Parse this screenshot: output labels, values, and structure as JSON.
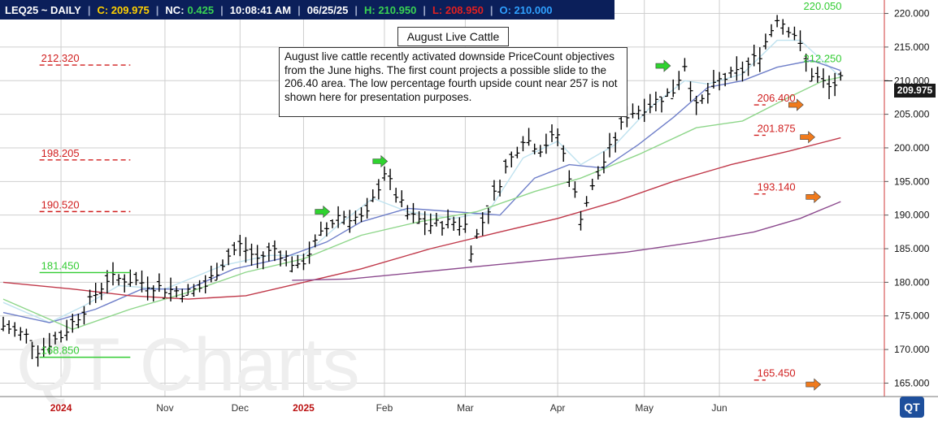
{
  "header": {
    "symbol": "LEQ25 ~ DAILY",
    "close": "C: 209.975",
    "net_change_label": "NC:",
    "net_change": "0.425",
    "time": "10:08:41 AM",
    "date": "06/25/25",
    "high": "H: 210.950",
    "low": "L: 208.950",
    "open": "O: 210.000",
    "colors": {
      "bg": "#0b1f5a",
      "symbol": "#ffffff",
      "close": "#ffd000",
      "nc_label": "#ffffff",
      "nc": "#39d353",
      "time": "#ffffff",
      "date": "#ffffff",
      "high": "#39d353",
      "low": "#e02020",
      "open": "#2fa0ff"
    }
  },
  "annotations": {
    "title": "August Live Cattle",
    "note": "August live cattle recently activated downside PriceCount objectives from the June highs.  The first count projects a possible slide to the 206.40 area.  The low percentage fourth upside count near 257 is not shown here for presentation purposes."
  },
  "last_price": "209.975",
  "watermark": "QT Charts",
  "logo": "QT",
  "chart_data": {
    "type": "ohlc",
    "ylim": [
      163,
      222
    ],
    "y_ticks": [
      165.0,
      170.0,
      175.0,
      180.0,
      185.0,
      190.0,
      195.0,
      200.0,
      205.0,
      210.0,
      215.0,
      220.0
    ],
    "y_tick_labels": [
      "165.000",
      "170.000",
      "175.000",
      "180.000",
      "185.000",
      "190.000",
      "195.000",
      "200.000",
      "205.000",
      "210.000",
      "215.000",
      "220.000"
    ],
    "x_labels": [
      "2024",
      "Nov",
      "Dec",
      "2025",
      "Feb",
      "Mar",
      "Apr",
      "May",
      "Jun"
    ],
    "x_label_colors": [
      "#b11",
      "#333",
      "#333",
      "#b11",
      "#333",
      "#333",
      "#333",
      "#333",
      "#333"
    ],
    "x_label_pos": [
      10,
      28,
      41,
      52,
      66,
      80,
      96,
      111,
      124
    ],
    "num_bars": 152,
    "close_path": [
      [
        0,
        173.5
      ],
      [
        4,
        172.0
      ],
      [
        6,
        170.0
      ],
      [
        10,
        172.0
      ],
      [
        14,
        176.0
      ],
      [
        18,
        180.5
      ],
      [
        21,
        180.5
      ],
      [
        24,
        180.0
      ],
      [
        28,
        179.0
      ],
      [
        32,
        178.5
      ],
      [
        35,
        179.5
      ],
      [
        39,
        184.0
      ],
      [
        41,
        185.5
      ],
      [
        44,
        183.5
      ],
      [
        47,
        185.0
      ],
      [
        50,
        183.0
      ],
      [
        51,
        182.0
      ],
      [
        55,
        187.0
      ],
      [
        58,
        190.0
      ],
      [
        62,
        189.5
      ],
      [
        63,
        190.0
      ],
      [
        66,
        196.5
      ],
      [
        68,
        193.0
      ],
      [
        70,
        190.0
      ],
      [
        74,
        188.5
      ],
      [
        78,
        189.0
      ],
      [
        80,
        188.5
      ],
      [
        81,
        185.0
      ],
      [
        84,
        191.0
      ],
      [
        87,
        197.0
      ],
      [
        90,
        201.5
      ],
      [
        93,
        200.0
      ],
      [
        96,
        202.0
      ],
      [
        98,
        196.0
      ],
      [
        100,
        190.0
      ],
      [
        104,
        198.0
      ],
      [
        108,
        205.0
      ],
      [
        112,
        206.5
      ],
      [
        116,
        208.5
      ],
      [
        118,
        212.5
      ],
      [
        120,
        206.0
      ],
      [
        124,
        210.0
      ],
      [
        128,
        211.5
      ],
      [
        131,
        214.0
      ],
      [
        134,
        219.5
      ],
      [
        137,
        217.0
      ],
      [
        140,
        211.0
      ],
      [
        143,
        209.0
      ],
      [
        145,
        209.975
      ]
    ],
    "high_low_count": 146,
    "moving_averages": [
      {
        "name": "",
        "color": "#bfe2ef",
        "points": [
          [
            0,
            177.0
          ],
          [
            8,
            174.0
          ],
          [
            14,
            176.5
          ],
          [
            20,
            179.5
          ],
          [
            28,
            179.0
          ],
          [
            38,
            182.5
          ],
          [
            46,
            184.0
          ],
          [
            52,
            184.0
          ],
          [
            58,
            188.5
          ],
          [
            64,
            192.5
          ],
          [
            70,
            190.5
          ],
          [
            78,
            189.5
          ],
          [
            84,
            190.5
          ],
          [
            90,
            198.5
          ],
          [
            96,
            201.0
          ],
          [
            100,
            197.5
          ],
          [
            106,
            200.5
          ],
          [
            112,
            206.0
          ],
          [
            118,
            210.0
          ],
          [
            122,
            209.5
          ],
          [
            128,
            211.0
          ],
          [
            134,
            216.0
          ],
          [
            138,
            216.0
          ],
          [
            145,
            210.5
          ]
        ]
      },
      {
        "name": "",
        "color": "#6f7fc9",
        "points": [
          [
            0,
            175.5
          ],
          [
            8,
            174.0
          ],
          [
            16,
            176.0
          ],
          [
            24,
            179.0
          ],
          [
            32,
            179.0
          ],
          [
            40,
            182.0
          ],
          [
            48,
            183.5
          ],
          [
            56,
            186.0
          ],
          [
            62,
            189.0
          ],
          [
            70,
            191.0
          ],
          [
            78,
            190.5
          ],
          [
            86,
            190.0
          ],
          [
            92,
            195.5
          ],
          [
            98,
            197.5
          ],
          [
            104,
            197.0
          ],
          [
            110,
            200.5
          ],
          [
            116,
            204.5
          ],
          [
            122,
            209.0
          ],
          [
            128,
            210.0
          ],
          [
            134,
            212.0
          ],
          [
            140,
            213.0
          ],
          [
            145,
            211.5
          ]
        ]
      },
      {
        "name": "",
        "color": "#8ed68a",
        "points": [
          [
            0,
            177.5
          ],
          [
            12,
            173.0
          ],
          [
            22,
            176.0
          ],
          [
            32,
            178.5
          ],
          [
            42,
            181.5
          ],
          [
            52,
            183.5
          ],
          [
            62,
            187.0
          ],
          [
            72,
            189.0
          ],
          [
            82,
            190.5
          ],
          [
            92,
            193.5
          ],
          [
            100,
            195.5
          ],
          [
            110,
            199.0
          ],
          [
            120,
            203.0
          ],
          [
            128,
            204.0
          ],
          [
            136,
            207.5
          ],
          [
            142,
            210.0
          ],
          [
            145,
            210.5
          ]
        ]
      },
      {
        "name": "",
        "color": "#c0394a",
        "points": [
          [
            0,
            180.0
          ],
          [
            12,
            179.0
          ],
          [
            22,
            178.0
          ],
          [
            32,
            177.5
          ],
          [
            42,
            178.0
          ],
          [
            52,
            180.0
          ],
          [
            62,
            182.0
          ],
          [
            74,
            185.0
          ],
          [
            86,
            187.5
          ],
          [
            96,
            189.5
          ],
          [
            106,
            192.0
          ],
          [
            116,
            195.0
          ],
          [
            126,
            197.5
          ],
          [
            136,
            199.5
          ],
          [
            145,
            201.5
          ]
        ]
      },
      {
        "name": "",
        "color": "#8c4a8e",
        "points": [
          [
            50,
            180.3
          ],
          [
            60,
            180.5
          ],
          [
            72,
            181.5
          ],
          [
            84,
            182.5
          ],
          [
            96,
            183.5
          ],
          [
            108,
            184.5
          ],
          [
            120,
            186.0
          ],
          [
            130,
            187.5
          ],
          [
            138,
            189.5
          ],
          [
            145,
            192.0
          ]
        ]
      }
    ],
    "pricecount_levels": [
      {
        "label": "220.050",
        "value": 220.05,
        "color": "#33cc33",
        "x0": 138,
        "x1": 138,
        "dashed": false
      },
      {
        "label": "212.320",
        "value": 212.32,
        "color": "#d01f1f",
        "x0": 6,
        "x1": 22,
        "dashed": true
      },
      {
        "label": "212.250",
        "value": 212.25,
        "color": "#33cc33",
        "x0": 138,
        "x1": 138,
        "dashed": false
      },
      {
        "label": "206.400",
        "value": 206.4,
        "color": "#d01f1f",
        "x0": 130,
        "x1": 132,
        "dashed": true
      },
      {
        "label": "201.875",
        "value": 201.875,
        "color": "#d01f1f",
        "x0": 130,
        "x1": 132,
        "dashed": true
      },
      {
        "label": "198.205",
        "value": 198.205,
        "color": "#d01f1f",
        "x0": 6,
        "x1": 22,
        "dashed": true
      },
      {
        "label": "193.140",
        "value": 193.14,
        "color": "#d01f1f",
        "x0": 130,
        "x1": 132,
        "dashed": true
      },
      {
        "label": "190.520",
        "value": 190.52,
        "color": "#d01f1f",
        "x0": 6,
        "x1": 22,
        "dashed": true
      },
      {
        "label": "181.450",
        "value": 181.45,
        "color": "#33cc33",
        "x0": 6,
        "x1": 22,
        "dashed": false
      },
      {
        "label": "168.850",
        "value": 168.85,
        "color": "#33cc33",
        "x0": 6,
        "x1": 22,
        "dashed": false
      },
      {
        "label": "165.450",
        "value": 165.45,
        "color": "#d01f1f",
        "x0": 130,
        "x1": 132,
        "dashed": true
      }
    ],
    "signal_arrows": [
      {
        "direction": "right",
        "color": "#2fd32f",
        "x": 54,
        "y": 190.5
      },
      {
        "direction": "right",
        "color": "#2fd32f",
        "x": 64,
        "y": 198.0
      },
      {
        "direction": "right",
        "color": "#2fd32f",
        "x": 113,
        "y": 212.2
      },
      {
        "direction": "right",
        "color": "#f07a1c",
        "x": 136,
        "y": 206.4
      },
      {
        "direction": "right",
        "color": "#f07a1c",
        "x": 138,
        "y": 201.6
      },
      {
        "direction": "right",
        "color": "#f07a1c",
        "x": 139,
        "y": 192.7
      },
      {
        "direction": "right",
        "color": "#f07a1c",
        "x": 139,
        "y": 164.8
      }
    ],
    "grid": true,
    "legend": "none"
  }
}
